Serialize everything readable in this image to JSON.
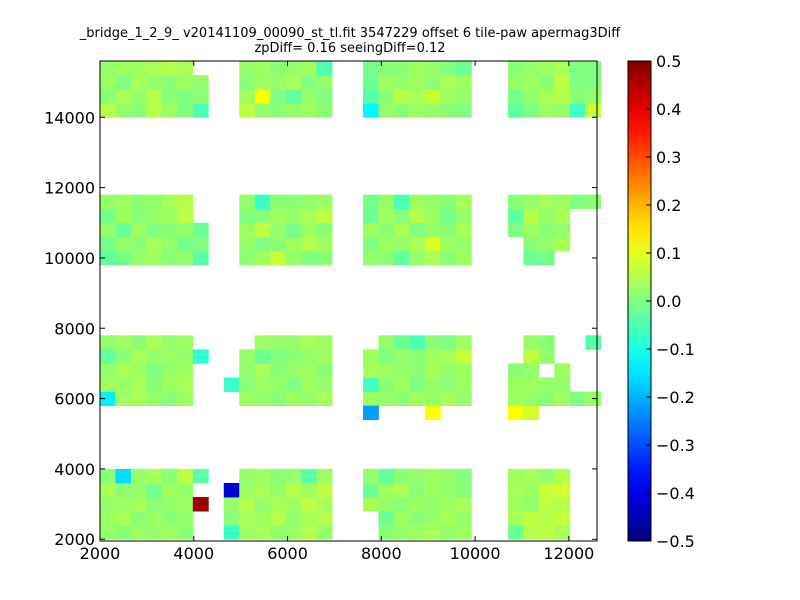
{
  "chart_data": {
    "type": "heatmap",
    "title": "_bridge_1_2_9_ v20141109_00090_st_tl.fit 3547229 offset 6 tile-paw apermag3Diff",
    "subtitle": "zpDiff= 0.16 seeingDiff=0.12",
    "xlim": [
      2000,
      12600
    ],
    "ylim": [
      1950,
      15600
    ],
    "xticks": [
      "2000",
      "4000",
      "6000",
      "8000",
      "10000",
      "12000"
    ],
    "yticks": [
      "2000",
      "4000",
      "6000",
      "8000",
      "10000",
      "12000",
      "14000"
    ],
    "colorbar": {
      "min": -0.5,
      "max": 0.5,
      "colormap": "jet",
      "ticks": [
        "0.5",
        "0.4",
        "0.3",
        "0.2",
        "0.1",
        "0.0",
        "−0.1",
        "−0.2",
        "−0.3",
        "−0.4",
        "−0.5"
      ]
    },
    "cell_size": [
      330,
      400
    ],
    "default_value": 0.0,
    "groups": [
      {
        "x": [
          2000,
          2330,
          2660,
          2990,
          3320,
          3650
        ],
        "y": [
          14000,
          14400,
          14800,
          15200
        ],
        "values": [
          [
            0.05,
            0.02,
            0.01,
            0.05,
            0.03,
            0.0
          ],
          [
            0.01,
            0.04,
            0.02,
            0.05,
            0.01,
            0.0
          ],
          [
            0.03,
            0.0,
            0.04,
            0.02,
            0.01,
            0.03
          ],
          [
            0.02,
            0.03,
            0.03,
            0.04,
            0.05,
            0.04
          ]
        ]
      },
      {
        "x": [
          3980
        ],
        "y": [
          14000,
          14400,
          14800
        ],
        "values": [
          [
            -0.05
          ],
          [
            0.01
          ],
          [
            0.02
          ]
        ]
      },
      {
        "x": [
          4970,
          5300,
          5630,
          5960,
          6290,
          6620
        ],
        "y": [
          14000,
          14400,
          14800,
          15200
        ],
        "values": [
          [
            0.06,
            0.02,
            0.01,
            0.02,
            0.03,
            0.01
          ],
          [
            0.03,
            0.12,
            0.0,
            -0.03,
            0.02,
            0.0
          ],
          [
            0.01,
            0.03,
            0.02,
            0.04,
            0.0,
            0.02
          ],
          [
            0.02,
            0.03,
            0.01,
            0.02,
            0.03,
            -0.05
          ]
        ]
      },
      {
        "x": [
          7610,
          7940,
          8270,
          8600,
          8930,
          9260,
          9590
        ],
        "y": [
          14000,
          14400,
          14800,
          15200
        ],
        "values": [
          [
            -0.13,
            0.02,
            0.01,
            0.03,
            0.02,
            0.01,
            0.0
          ],
          [
            -0.04,
            0.01,
            0.05,
            0.04,
            0.07,
            0.03,
            0.02
          ],
          [
            -0.02,
            0.03,
            0.02,
            0.03,
            0.01,
            0.04,
            0.03
          ],
          [
            -0.01,
            0.01,
            0.01,
            0.03,
            0.02,
            0.0,
            -0.02
          ]
        ]
      },
      {
        "x": [
          10700,
          11030,
          11360,
          11690,
          12020,
          12350
        ],
        "y": [
          14000,
          14400,
          14800,
          15200
        ],
        "values": [
          [
            -0.03,
            0.0,
            0.03,
            0.02,
            -0.06,
            0.07
          ],
          [
            -0.01,
            0.02,
            0.04,
            0.05,
            0.01,
            0.02
          ],
          [
            0.02,
            0.03,
            0.01,
            0.06,
            0.0,
            0.0
          ],
          [
            0.01,
            0.02,
            0.03,
            0.04,
            0.0,
            0.0
          ]
        ]
      },
      {
        "x": [
          2000,
          2330,
          2660,
          2990,
          3320,
          3650
        ],
        "y": [
          9800,
          10200,
          10600,
          11000,
          11400
        ],
        "values": [
          [
            -0.03,
            -0.01,
            0.02,
            0.03,
            0.01,
            0.02
          ],
          [
            -0.01,
            0.02,
            0.01,
            0.04,
            0.02,
            -0.01
          ],
          [
            0.02,
            -0.02,
            0.03,
            0.0,
            0.01,
            0.02
          ],
          [
            -0.01,
            0.03,
            0.01,
            0.02,
            0.03,
            0.06
          ],
          [
            0.02,
            0.03,
            0.01,
            0.02,
            0.04,
            0.05
          ]
        ]
      },
      {
        "x": [
          3980
        ],
        "y": [
          9800,
          10200,
          10600
        ],
        "values": [
          [
            -0.04
          ],
          [
            0.0
          ],
          [
            -0.02
          ]
        ]
      },
      {
        "x": [
          4970,
          5300,
          5630,
          5960,
          6290,
          6620
        ],
        "y": [
          9800,
          10200,
          10600,
          11000,
          11400
        ],
        "values": [
          [
            0.01,
            0.03,
            0.07,
            0.02,
            0.0,
            0.01
          ],
          [
            0.02,
            0.0,
            0.01,
            0.03,
            0.05,
            0.03
          ],
          [
            0.03,
            0.06,
            0.02,
            -0.01,
            0.03,
            0.01
          ],
          [
            0.0,
            0.01,
            0.03,
            0.02,
            0.04,
            0.06
          ],
          [
            0.02,
            -0.07,
            0.01,
            0.01,
            0.02,
            0.03
          ]
        ]
      },
      {
        "x": [
          7610,
          7940,
          8270,
          8600,
          8930,
          9260,
          9590
        ],
        "y": [
          9800,
          10200,
          10600,
          11000,
          11400
        ],
        "values": [
          [
            0.02,
            0.01,
            -0.03,
            0.02,
            0.04,
            0.01,
            0.03
          ],
          [
            0.0,
            0.03,
            0.02,
            0.04,
            0.09,
            0.03,
            0.02
          ],
          [
            0.03,
            0.01,
            0.04,
            0.0,
            0.02,
            0.01,
            0.04
          ],
          [
            -0.02,
            0.03,
            0.01,
            0.05,
            0.03,
            -0.01,
            0.02
          ],
          [
            -0.01,
            0.02,
            -0.05,
            0.03,
            0.02,
            0.01,
            0.04
          ]
        ]
      },
      {
        "x": [
          10700,
          11030,
          11360,
          11690,
          12020,
          12350
        ],
        "y": [
          9800,
          10200,
          10600,
          11000,
          11400
        ],
        "values": [
          [
            null,
            -0.02,
            -0.01,
            null,
            null,
            null
          ],
          [
            null,
            0.01,
            0.02,
            0.04,
            null,
            null
          ],
          [
            0.0,
            0.03,
            0.01,
            0.02,
            null,
            null
          ],
          [
            -0.03,
            0.05,
            0.02,
            0.04,
            null,
            null
          ],
          [
            0.01,
            0.02,
            0.04,
            0.03,
            0.0,
            0.01
          ]
        ]
      },
      {
        "x": [
          2000,
          2330,
          2660,
          2990,
          3320,
          3650
        ],
        "y": [
          5800,
          6200,
          6600,
          7000,
          7400
        ],
        "values": [
          [
            -0.14,
            0.03,
            0.04,
            0.02,
            0.01,
            0.03
          ],
          [
            0.03,
            0.02,
            0.04,
            0.01,
            0.03,
            0.04
          ],
          [
            0.02,
            0.04,
            0.03,
            0.0,
            0.02,
            0.03
          ],
          [
            -0.03,
            0.01,
            0.04,
            0.02,
            0.03,
            0.02
          ],
          [
            0.02,
            0.03,
            0.01,
            0.04,
            0.02,
            0.03
          ]
        ]
      },
      {
        "x": [
          3980
        ],
        "y": [
          7000
        ],
        "values": [
          [
            -0.08
          ]
        ]
      },
      {
        "x": [
          4640,
          4970,
          5300,
          5630,
          5960,
          6290,
          6620
        ],
        "y": [
          5800,
          6200,
          6600,
          7000,
          7400
        ],
        "values": [
          [
            null,
            0.03,
            0.02,
            0.01,
            0.03,
            0.02,
            0.04
          ],
          [
            -0.07,
            0.01,
            0.03,
            0.02,
            0.0,
            0.03,
            0.02
          ],
          [
            null,
            0.02,
            0.04,
            0.01,
            0.02,
            0.03,
            0.01
          ],
          [
            null,
            0.02,
            -0.02,
            0.0,
            0.01,
            0.02,
            0.03
          ],
          [
            null,
            null,
            0.03,
            0.02,
            0.02,
            0.04,
            0.03
          ]
        ]
      },
      {
        "x": [
          7610,
          7940,
          8270,
          8600,
          8930,
          9260,
          9590
        ],
        "y": [
          5800,
          6200,
          6600,
          7000,
          7400
        ],
        "values": [
          [
            0.03,
            0.02,
            0.01,
            0.03,
            0.02,
            0.04,
            0.02
          ],
          [
            -0.06,
            0.01,
            0.03,
            0.0,
            0.02,
            0.01,
            0.03
          ],
          [
            0.04,
            0.03,
            0.02,
            0.01,
            0.04,
            0.02,
            0.03
          ],
          [
            0.03,
            0.0,
            0.02,
            0.01,
            0.03,
            0.04,
            0.07
          ],
          [
            null,
            0.02,
            -0.02,
            -0.05,
            0.01,
            0.0,
            0.03
          ]
        ]
      },
      {
        "x": [
          7610
        ],
        "y": [
          5400
        ],
        "values": [
          [
            -0.22
          ]
        ]
      },
      {
        "x": [
          8930
        ],
        "y": [
          5400
        ],
        "values": [
          [
            0.12
          ]
        ]
      },
      {
        "x": [
          10700,
          11030
        ],
        "y": [
          5400
        ],
        "values": [
          [
            0.12,
            0.08
          ]
        ]
      },
      {
        "x": [
          10700,
          11030,
          11360,
          11690,
          12020,
          12350
        ],
        "y": [
          5800,
          6200,
          6600,
          7000,
          7400
        ],
        "values": [
          [
            0.03,
            0.02,
            0.01,
            0.03,
            0.0,
            0.02
          ],
          [
            0.03,
            0.03,
            0.02,
            0.02,
            null,
            null
          ],
          [
            0.01,
            0.02,
            null,
            0.03,
            null,
            null
          ],
          [
            null,
            0.06,
            0.02,
            null,
            null,
            null
          ],
          [
            null,
            0.02,
            0.01,
            null,
            null,
            -0.04
          ]
        ]
      },
      {
        "x": [
          2000,
          2330,
          2660,
          2990,
          3320,
          3650
        ],
        "y": [
          2000,
          2400,
          2800,
          3200,
          3600
        ],
        "values": [
          [
            0.02,
            0.01,
            0.03,
            0.02,
            0.03,
            0.01
          ],
          [
            0.03,
            0.04,
            0.01,
            0.03,
            0.01,
            0.02
          ],
          [
            0.02,
            0.03,
            0.04,
            0.01,
            0.02,
            0.03
          ],
          [
            0.04,
            0.01,
            0.02,
            -0.01,
            0.03,
            0.02
          ],
          [
            0.01,
            -0.16,
            0.02,
            0.04,
            0.01,
            0.06
          ]
        ]
      },
      {
        "x": [
          3980
        ],
        "y": [
          2800,
          3600
        ],
        "values": [
          [
            0.47
          ],
          [
            -0.04
          ]
        ]
      },
      {
        "x": [
          4640
        ],
        "y": [
          2000,
          2400,
          2800,
          3200
        ],
        "values": [
          [
            -0.07
          ],
          [
            0.01
          ],
          [
            0.02
          ],
          [
            -0.42
          ]
        ]
      },
      {
        "x": [
          4970,
          5300,
          5630,
          5960,
          6290,
          6620
        ],
        "y": [
          2000,
          2400,
          2800,
          3200,
          3600
        ],
        "values": [
          [
            0.03,
            0.04,
            0.02,
            0.03,
            0.05,
            0.02
          ],
          [
            0.04,
            0.03,
            0.05,
            0.02,
            0.04,
            0.05
          ],
          [
            0.05,
            0.02,
            0.04,
            0.03,
            0.06,
            0.04
          ],
          [
            0.03,
            0.04,
            0.02,
            0.05,
            0.03,
            0.06
          ],
          [
            0.02,
            0.03,
            0.01,
            0.02,
            -0.04,
            0.03
          ]
        ]
      },
      {
        "x": [
          7610,
          7940,
          8270,
          8600,
          8930,
          9260,
          9590
        ],
        "y": [
          2000,
          2400,
          2800,
          3200,
          3600
        ],
        "values": [
          [
            null,
            0.01,
            0.02,
            0.03,
            0.04,
            0.02,
            0.03
          ],
          [
            null,
            -0.02,
            0.03,
            0.01,
            0.02,
            0.04,
            0.02
          ],
          [
            0.04,
            0.02,
            0.01,
            0.03,
            0.02,
            0.03,
            0.04
          ],
          [
            -0.02,
            0.03,
            0.04,
            0.01,
            0.03,
            0.02,
            0.01
          ],
          [
            0.02,
            -0.03,
            0.01,
            0.02,
            0.03,
            0.02,
            0.0
          ]
        ]
      },
      {
        "x": [
          10700,
          11030,
          11360,
          11690
        ],
        "y": [
          2000,
          2400,
          2800,
          3200,
          3600
        ],
        "values": [
          [
            -0.02,
            0.05,
            0.06,
            0.04
          ],
          [
            0.04,
            0.06,
            0.05,
            0.07
          ],
          [
            0.03,
            0.02,
            0.06,
            0.05
          ],
          [
            0.04,
            0.03,
            0.07,
            0.08
          ],
          [
            0.03,
            0.04,
            0.02,
            0.05
          ]
        ]
      }
    ]
  }
}
